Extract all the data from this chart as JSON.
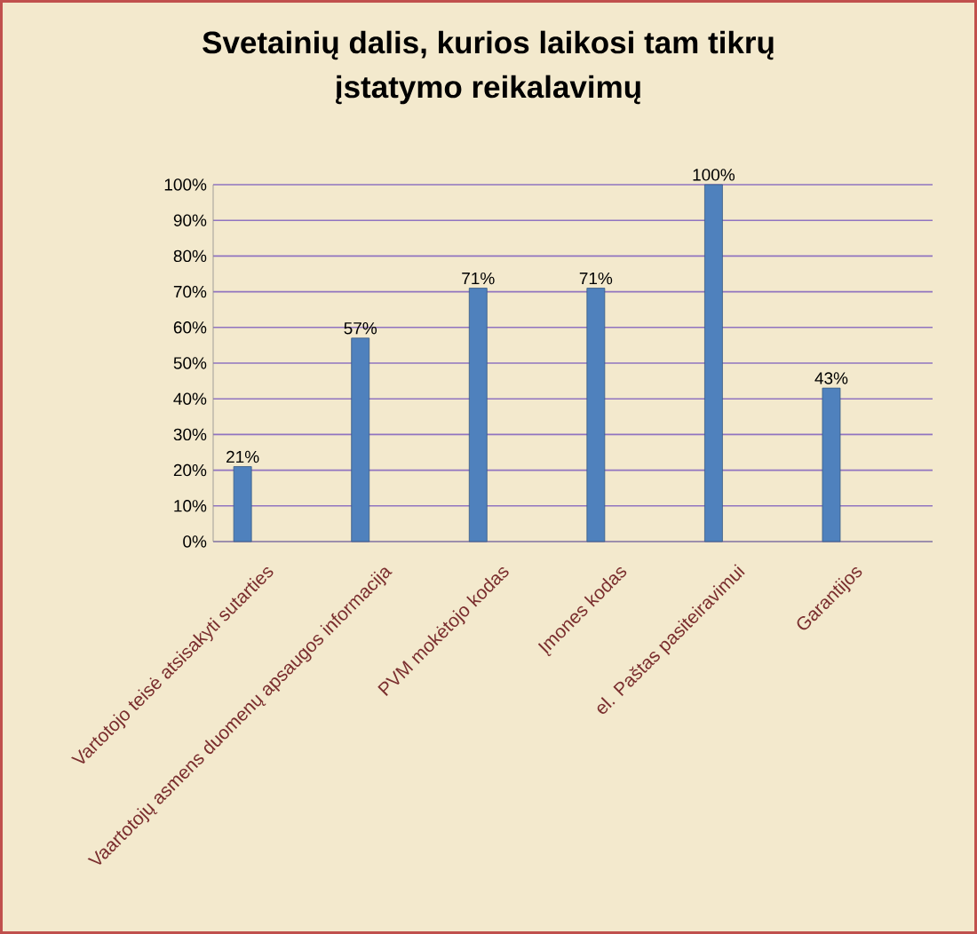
{
  "chart_data": {
    "type": "bar",
    "title": "Svetainių dalis, kurios laikosi tam tikrų įstatymo reikalavimų",
    "categories": [
      "Vartotojo teisė atsisakyti sutarties",
      "Vaartotojų asmens duomenų apsaugos informacija",
      "PVM mokėtojo kodas",
      "Įmones kodas",
      "el. Paštas pasiteiravimui",
      "Garantijos"
    ],
    "values": [
      21,
      57,
      71,
      71,
      100,
      43
    ],
    "color": "#4f81bd",
    "value_labels": [
      "21%",
      "57%",
      "71%",
      "71%",
      "100%",
      "43%"
    ],
    "ylim": [
      0,
      100
    ],
    "yticks": [
      {
        "value": 0,
        "label": "0%"
      },
      {
        "value": 10,
        "label": "10%"
      },
      {
        "value": 20,
        "label": "20%"
      },
      {
        "value": 30,
        "label": "30%"
      },
      {
        "value": 40,
        "label": "40%"
      },
      {
        "value": 50,
        "label": "50%"
      },
      {
        "value": 60,
        "label": "60%"
      },
      {
        "value": 70,
        "label": "70%"
      },
      {
        "value": 80,
        "label": "80%"
      },
      {
        "value": 90,
        "label": "90%"
      },
      {
        "value": 100,
        "label": "100%"
      }
    ],
    "grid": "y"
  }
}
